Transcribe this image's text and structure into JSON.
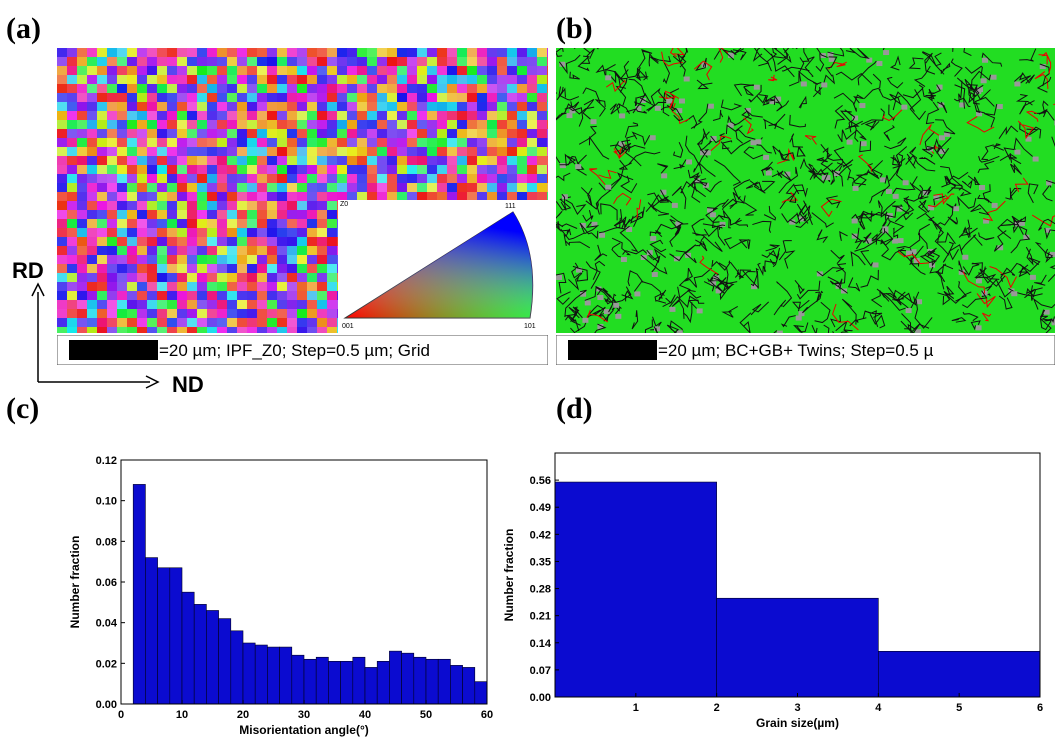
{
  "panel_labels": [
    "(a)",
    "(b)"
  ],
  "directions": {
    "vertical": "RD",
    "horizontal": "ND"
  },
  "maps": [
    {
      "caption": "=20 µm; IPF_Z0; Step=0.5 µm; Grid",
      "legend": {
        "corner": "Z0",
        "top": "111",
        "left": "001",
        "right": "101"
      }
    },
    {
      "caption": "=20 µm; BC+GB+ Twins; Step=0.5 µ"
    }
  ],
  "chart_data": [
    {
      "type": "histogram",
      "label": "(c)",
      "xlabel": "Misorientation angle(°)",
      "ylabel": "Number fraction",
      "color": "#0b0bd0",
      "bins": [
        2,
        4,
        6,
        8,
        10,
        12,
        14,
        16,
        18,
        20,
        22,
        24,
        26,
        28,
        30,
        32,
        34,
        36,
        38,
        40,
        42,
        44,
        46,
        48,
        50,
        52,
        54,
        56,
        58,
        60
      ],
      "values": [
        0.108,
        0.072,
        0.067,
        0.067,
        0.055,
        0.049,
        0.046,
        0.042,
        0.036,
        0.03,
        0.029,
        0.028,
        0.028,
        0.024,
        0.022,
        0.023,
        0.021,
        0.021,
        0.023,
        0.018,
        0.021,
        0.026,
        0.025,
        0.023,
        0.022,
        0.022,
        0.019,
        0.018,
        0.011
      ],
      "xlim": [
        0,
        60
      ],
      "ylim": [
        0,
        0.12
      ],
      "xticks": [
        0,
        10,
        20,
        30,
        40,
        50,
        60
      ],
      "yticks": [
        {
          "value": 0,
          "label": "0.00"
        },
        0.02,
        0.04,
        0.06,
        0.08,
        {
          "value": 0.1,
          "label": "0.10"
        },
        0.12
      ]
    },
    {
      "type": "histogram",
      "label": "(d)",
      "xlabel": "Grain size(µm)",
      "ylabel": "Number fraction",
      "color": "#0b0bd0",
      "bins": [
        0,
        2,
        4,
        6
      ],
      "values": [
        0.555,
        0.255,
        0.118
      ],
      "xlim": [
        0,
        6
      ],
      "ylim": [
        0,
        0.63
      ],
      "xticks": [
        1,
        2,
        3,
        4,
        5,
        6
      ],
      "yticks": [
        {
          "value": 0,
          "label": "0.00"
        },
        0.07,
        0.14,
        0.21,
        0.28,
        0.35,
        0.42,
        0.49,
        0.56
      ]
    }
  ]
}
